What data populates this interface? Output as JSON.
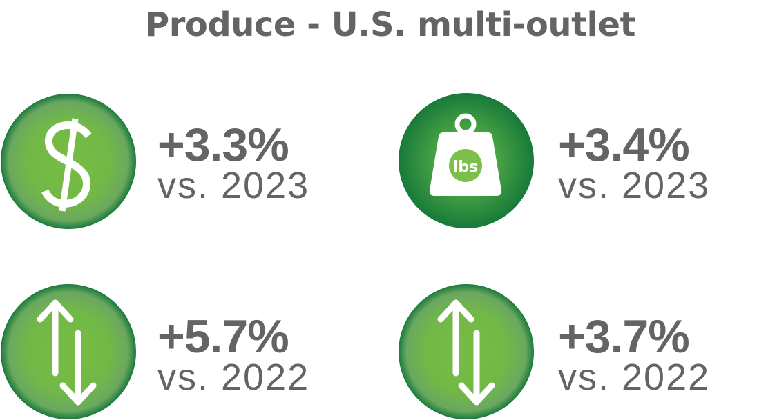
{
  "title": "Produce - U.S. multi-outlet",
  "colors": {
    "text": "#636466",
    "green_light": "#78bd45",
    "green_dark": "#1c7a3c",
    "icon_fill": "#ffffff"
  },
  "stats": [
    {
      "icon": "dollar-icon",
      "value": "+3.3%",
      "comparison": "vs. 2023"
    },
    {
      "icon": "weight-icon",
      "icon_label": "lbs",
      "value": "+3.4%",
      "comparison": "vs. 2023"
    },
    {
      "icon": "up-down-arrows-icon",
      "value": "+5.7%",
      "comparison": "vs. 2022"
    },
    {
      "icon": "up-down-arrows-icon",
      "value": "+3.7%",
      "comparison": "vs. 2022"
    }
  ]
}
